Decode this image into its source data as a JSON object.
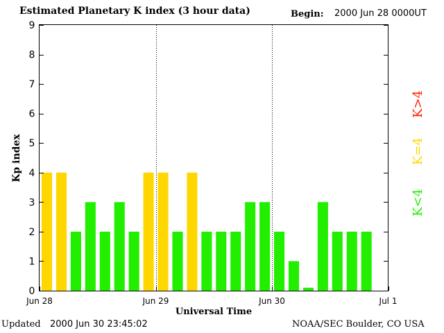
{
  "header": {
    "title": "Estimated Planetary K index (3 hour data)",
    "begin_label": "Begin:",
    "begin_value": "2000 Jun 28 0000UT"
  },
  "footer": {
    "updated_label": "Updated",
    "updated_value": "2000 Jun 30 23:45:02",
    "source": "NOAA/SEC Boulder, CO USA"
  },
  "legend": {
    "high": "K>4",
    "equal": "K=4",
    "low": "K<4"
  },
  "colors": {
    "low": "#22ee00",
    "equal": "#ffd700",
    "high": "#ff2200",
    "grid_line": "#000000"
  },
  "chart_data": {
    "type": "bar",
    "title": "Estimated Planetary K index (3 hour data)",
    "xlabel": "Universal Time",
    "ylabel": "Kp index",
    "ylim": [
      0,
      9
    ],
    "yticks": [
      "0",
      "1",
      "2",
      "3",
      "4",
      "5",
      "6",
      "7",
      "8",
      "9"
    ],
    "xticks": [
      "Jun 28",
      "Jun 29",
      "Jun 30",
      "Jul 1"
    ],
    "bins_per_day": 8,
    "values": [
      4,
      4,
      2,
      3,
      2,
      3,
      2,
      4,
      4,
      2,
      4,
      2,
      2,
      2,
      3,
      3,
      2,
      1,
      0.1,
      3,
      2,
      2,
      2
    ],
    "grid": false,
    "day_separators": "dotted vertical lines"
  }
}
